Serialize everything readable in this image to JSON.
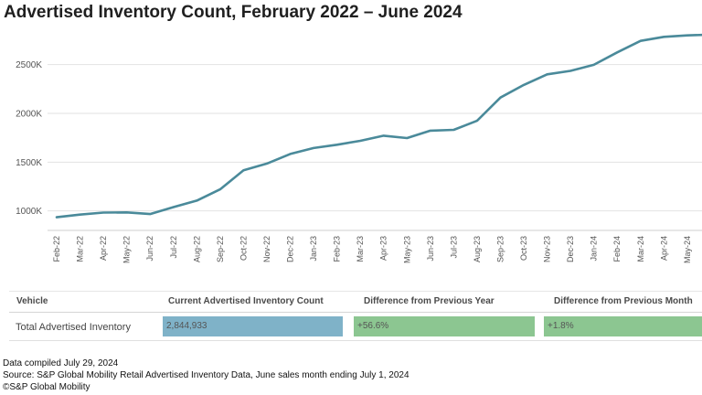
{
  "title": "Advertised Inventory Count, February 2022 – June 2024",
  "chart_data": {
    "type": "line",
    "x": [
      "Feb-22",
      "Mar-22",
      "Apr-22",
      "May-22",
      "Jun-22",
      "Jul-22",
      "Aug-22",
      "Sep-22",
      "Oct-22",
      "Nov-22",
      "Dec-22",
      "Jan-23",
      "Feb-23",
      "Mar-23",
      "Apr-23",
      "May-23",
      "Jun-23",
      "Jul-23",
      "Aug-23",
      "Sep-23",
      "Oct-23",
      "Nov-23",
      "Dec-23",
      "Jan-24",
      "Feb-24",
      "Mar-24",
      "Apr-24",
      "May-24"
    ],
    "series": [
      {
        "values": [
          935,
          962,
          983,
          985,
          968,
          1039,
          1106,
          1221,
          1416,
          1485,
          1584,
          1645,
          1678,
          1719,
          1771,
          1747,
          1823,
          1831,
          1924,
          2162,
          2292,
          2400,
          2436,
          2498,
          2625,
          2743,
          2785,
          2800
        ]
      }
    ],
    "yticks": [
      1000,
      1500,
      2000,
      2500
    ],
    "ytick_labels": [
      "1000K",
      "1500K",
      "2000K",
      "2500K"
    ],
    "ylim": [
      800,
      2900
    ],
    "xlabel": "",
    "ylabel": "",
    "grid": "horizontal",
    "color": "#4a8a9a"
  },
  "table": {
    "headers": [
      "Vehicle",
      "Current Advertised Inventory Count",
      "Difference from Previous Year",
      "Difference from Previous Month"
    ],
    "row": {
      "label": "Total Advertised Inventory",
      "count": "2,844,933",
      "yoy": "+56.6%",
      "mom": "+1.8%"
    },
    "colors": {
      "count": "#7fb2c8",
      "yoy": "#8cc691",
      "mom": "#8cc691"
    }
  },
  "notes": [
    "Data compiled July 29, 2024",
    "Source: S&P Global Mobility Retail Advertised Inventory Data, June sales month ending July 1, 2024",
    "©S&P Global Mobility"
  ]
}
